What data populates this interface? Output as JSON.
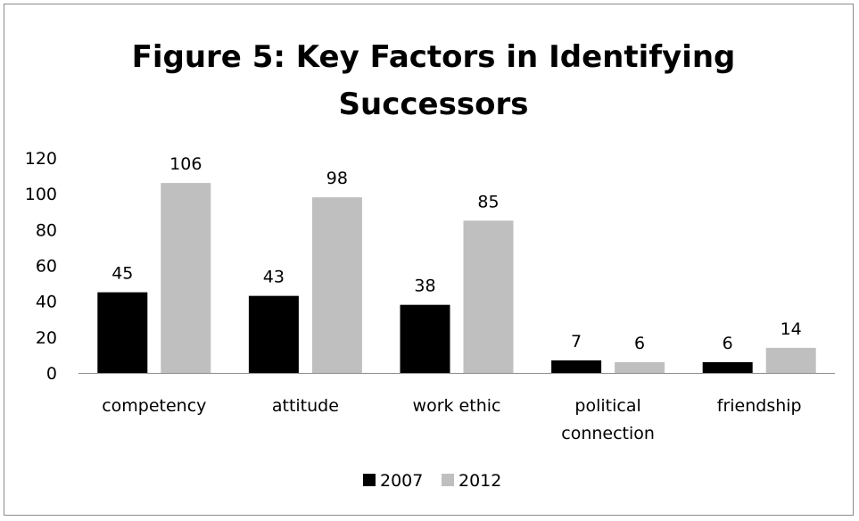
{
  "chart_data": {
    "type": "bar",
    "title": "Figure 5: Key Factors in Identifying Successors",
    "title_lines": [
      "Figure 5: Key Factors in Identifying",
      "Successors"
    ],
    "categories": [
      "competency",
      "attitude",
      "work ethic",
      "political connection",
      "friendship"
    ],
    "category_lines": [
      [
        "competency"
      ],
      [
        "attitude"
      ],
      [
        "work ethic"
      ],
      [
        "political",
        "connection"
      ],
      [
        "friendship"
      ]
    ],
    "series": [
      {
        "name": "2007",
        "values": [
          45,
          43,
          38,
          7,
          6
        ],
        "color": "#000000"
      },
      {
        "name": "2012",
        "values": [
          106,
          98,
          85,
          6,
          14
        ],
        "color": "#bfbfbf"
      }
    ],
    "ylim": [
      0,
      120
    ],
    "yticks": [
      "0",
      "20",
      "40",
      "60",
      "80",
      "100",
      "120"
    ],
    "xlabel": "",
    "ylabel": "",
    "grid": false,
    "data_labels": true,
    "legend_position": "bottom"
  }
}
